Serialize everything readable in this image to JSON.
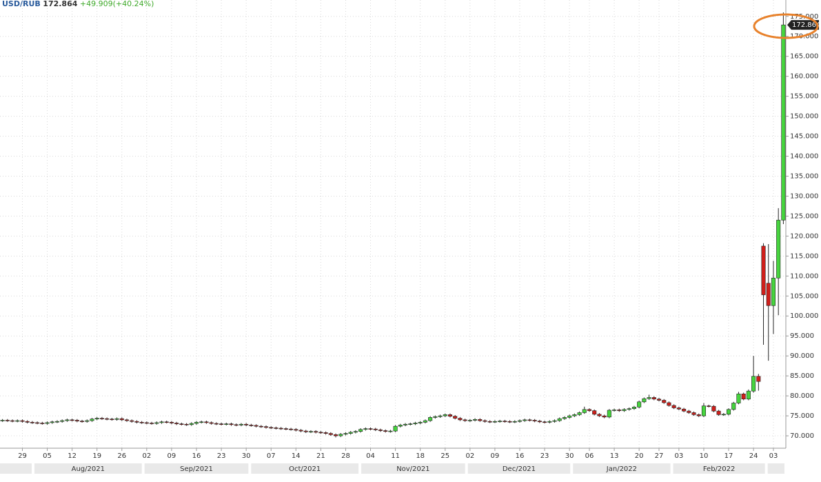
{
  "chart_data": {
    "type": "candlestick",
    "title": "USD/RUB",
    "change": "+49.909(+40.24%)",
    "categories": [
      null,
      null,
      null,
      null,
      "29",
      null,
      null,
      null,
      null,
      "05",
      null,
      null,
      null,
      null,
      "12",
      null,
      null,
      null,
      null,
      "19",
      null,
      null,
      null,
      null,
      "26",
      null,
      null,
      null,
      null,
      "02",
      null,
      null,
      null,
      null,
      "09",
      null,
      null,
      null,
      null,
      "16",
      null,
      null,
      null,
      null,
      "23",
      null,
      null,
      null,
      null,
      "30",
      null,
      null,
      null,
      null,
      "07",
      null,
      null,
      null,
      null,
      "14",
      null,
      null,
      null,
      null,
      "21",
      null,
      null,
      null,
      null,
      "28",
      null,
      null,
      null,
      null,
      "04",
      null,
      null,
      null,
      null,
      "11",
      null,
      null,
      null,
      null,
      "18",
      null,
      null,
      null,
      null,
      "25",
      null,
      null,
      null,
      null,
      "02",
      null,
      null,
      null,
      null,
      "09",
      null,
      null,
      null,
      null,
      "16",
      null,
      null,
      null,
      null,
      "23",
      null,
      null,
      null,
      null,
      "30",
      null,
      null,
      null,
      "06",
      null,
      null,
      null,
      null,
      "13",
      null,
      null,
      null,
      null,
      "20",
      null,
      null,
      null,
      "27",
      null,
      null,
      null,
      "03",
      null,
      null,
      null,
      null,
      "10",
      null,
      null,
      null,
      null,
      "17",
      null,
      null,
      null,
      null,
      "24",
      null,
      null,
      null,
      "03",
      null,
      null
    ],
    "months": [
      "Aug/2021",
      "Sep/2021",
      "Oct/2021",
      "Nov/2021",
      "Dec/2021",
      "Jan/2022",
      "Feb/2022"
    ],
    "open": [
      73.8,
      73.9,
      73.8,
      73.7,
      73.8,
      73.6,
      73.4,
      73.3,
      73.2,
      73.1,
      73.3,
      73.5,
      73.6,
      73.8,
      74.0,
      73.9,
      73.7,
      73.6,
      73.8,
      74.2,
      74.4,
      74.3,
      74.2,
      74.1,
      74.3,
      74.0,
      73.8,
      73.6,
      73.4,
      73.3,
      73.2,
      73.1,
      73.3,
      73.5,
      73.4,
      73.2,
      73.0,
      72.9,
      72.8,
      73.1,
      73.4,
      73.5,
      73.3,
      73.1,
      73.0,
      72.9,
      73.0,
      72.8,
      72.7,
      72.9,
      72.7,
      72.6,
      72.4,
      72.3,
      72.1,
      72.0,
      71.9,
      71.8,
      71.7,
      71.6,
      71.4,
      71.2,
      71.0,
      71.1,
      70.9,
      70.8,
      70.6,
      70.3,
      70.0,
      70.4,
      70.6,
      70.9,
      71.1,
      71.6,
      71.8,
      71.7,
      71.5,
      71.3,
      71.1,
      71.2,
      72.4,
      72.7,
      72.9,
      73.0,
      73.2,
      73.4,
      73.8,
      74.6,
      74.8,
      75.0,
      75.3,
      74.9,
      74.4,
      74.0,
      73.8,
      73.9,
      74.1,
      73.8,
      73.6,
      73.5,
      73.6,
      73.7,
      73.6,
      73.5,
      73.6,
      73.8,
      74.0,
      73.9,
      73.7,
      73.5,
      73.4,
      73.6,
      73.8,
      74.3,
      74.6,
      75.0,
      75.3,
      75.8,
      76.6,
      76.3,
      75.4,
      75.0,
      74.7,
      76.4,
      76.5,
      76.3,
      76.6,
      76.8,
      77.2,
      78.5,
      79.3,
      79.6,
      79.2,
      78.9,
      78.3,
      77.6,
      77.0,
      76.7,
      76.2,
      75.8,
      75.3,
      75.0,
      77.5,
      77.4,
      76.2,
      75.3,
      75.4,
      76.6,
      78.2,
      80.5,
      79.2,
      81.2,
      84.9,
      117.5,
      108.2,
      102.6,
      109.5,
      124.0
    ],
    "high": [
      74.2,
      74.2,
      74.1,
      74.1,
      74.1,
      73.9,
      73.7,
      73.6,
      73.5,
      73.6,
      73.8,
      73.9,
      74.1,
      74.3,
      74.3,
      74.2,
      74.0,
      74.1,
      74.5,
      74.7,
      74.7,
      74.6,
      74.5,
      74.6,
      74.6,
      74.3,
      74.1,
      73.9,
      73.7,
      73.6,
      73.5,
      73.6,
      73.8,
      73.8,
      73.7,
      73.5,
      73.3,
      73.2,
      73.4,
      73.7,
      73.8,
      73.8,
      73.6,
      73.4,
      73.3,
      73.3,
      73.3,
      73.1,
      73.2,
      73.2,
      73.0,
      72.9,
      72.7,
      72.6,
      72.4,
      72.3,
      72.2,
      72.1,
      72.0,
      71.9,
      71.7,
      71.5,
      71.4,
      71.4,
      71.2,
      71.1,
      70.9,
      70.6,
      70.7,
      70.9,
      71.2,
      71.4,
      71.9,
      72.1,
      72.1,
      72.0,
      71.8,
      71.6,
      71.5,
      72.7,
      73.0,
      73.2,
      73.3,
      73.5,
      73.7,
      74.1,
      74.9,
      75.1,
      75.3,
      75.6,
      75.6,
      75.2,
      74.7,
      74.3,
      74.2,
      74.4,
      74.4,
      74.1,
      73.9,
      73.9,
      74.0,
      74.0,
      73.9,
      73.9,
      74.1,
      74.3,
      74.3,
      74.2,
      74.0,
      73.8,
      73.9,
      74.1,
      74.6,
      74.9,
      75.3,
      75.6,
      76.1,
      77.3,
      76.9,
      76.6,
      75.7,
      75.3,
      76.7,
      76.8,
      76.8,
      76.9,
      77.1,
      77.5,
      78.8,
      79.6,
      80.3,
      79.9,
      79.5,
      79.2,
      78.6,
      77.9,
      77.3,
      77.0,
      76.5,
      76.1,
      75.6,
      78.2,
      77.8,
      77.7,
      76.5,
      75.7,
      76.9,
      78.5,
      81.0,
      80.8,
      81.6,
      90.0,
      85.5,
      118.2,
      118.0,
      113.8,
      127.0,
      176.0
    ],
    "low": [
      73.5,
      73.5,
      73.4,
      73.4,
      73.3,
      73.1,
      73.0,
      72.9,
      72.8,
      72.8,
      73.0,
      73.2,
      73.3,
      73.5,
      73.6,
      73.4,
      73.3,
      73.3,
      73.5,
      73.9,
      74.0,
      73.9,
      73.8,
      73.8,
      73.7,
      73.5,
      73.3,
      73.1,
      73.0,
      72.9,
      72.8,
      72.8,
      73.0,
      73.1,
      72.9,
      72.7,
      72.6,
      72.5,
      72.5,
      72.8,
      73.1,
      73.0,
      72.8,
      72.7,
      72.6,
      72.6,
      72.5,
      72.4,
      72.4,
      72.4,
      72.3,
      72.1,
      72.0,
      71.8,
      71.7,
      71.6,
      71.5,
      71.4,
      71.3,
      71.1,
      70.9,
      70.7,
      70.7,
      70.6,
      70.5,
      70.3,
      70.0,
      69.6,
      69.7,
      70.1,
      70.3,
      70.6,
      70.8,
      71.3,
      71.4,
      71.2,
      71.0,
      70.8,
      70.8,
      70.9,
      72.1,
      72.4,
      72.6,
      72.7,
      72.9,
      73.1,
      73.5,
      74.3,
      74.5,
      74.7,
      74.6,
      74.1,
      73.7,
      73.5,
      73.5,
      73.6,
      73.5,
      73.3,
      73.2,
      73.2,
      73.3,
      73.3,
      73.2,
      73.2,
      73.3,
      73.5,
      73.6,
      73.4,
      73.2,
      73.1,
      73.1,
      73.3,
      73.5,
      74.0,
      74.3,
      74.7,
      75.0,
      75.5,
      76.0,
      75.1,
      74.7,
      74.4,
      74.4,
      76.1,
      76.0,
      76.0,
      76.3,
      76.5,
      76.9,
      78.2,
      79.0,
      78.9,
      78.6,
      78.0,
      77.3,
      76.7,
      76.4,
      75.9,
      75.5,
      75.0,
      74.7,
      74.7,
      77.1,
      75.9,
      75.0,
      75.0,
      75.1,
      76.3,
      77.9,
      78.9,
      78.9,
      80.8,
      81.3,
      92.8,
      88.8,
      95.5,
      100.2,
      123.0
    ],
    "close": [
      73.9,
      73.8,
      73.7,
      73.8,
      73.6,
      73.4,
      73.3,
      73.2,
      73.1,
      73.3,
      73.5,
      73.6,
      73.8,
      74.0,
      73.9,
      73.7,
      73.6,
      73.8,
      74.2,
      74.4,
      74.3,
      74.2,
      74.1,
      74.3,
      74.0,
      73.8,
      73.6,
      73.4,
      73.3,
      73.2,
      73.1,
      73.3,
      73.5,
      73.4,
      73.2,
      73.0,
      72.9,
      72.8,
      73.1,
      73.4,
      73.5,
      73.3,
      73.1,
      73.0,
      72.9,
      73.0,
      72.8,
      72.7,
      72.9,
      72.7,
      72.6,
      72.4,
      72.3,
      72.1,
      72.0,
      71.9,
      71.8,
      71.7,
      71.6,
      71.4,
      71.2,
      71.0,
      71.1,
      70.9,
      70.8,
      70.6,
      70.3,
      70.0,
      70.4,
      70.6,
      70.9,
      71.1,
      71.6,
      71.8,
      71.7,
      71.5,
      71.3,
      71.1,
      71.2,
      72.4,
      72.7,
      72.9,
      73.0,
      73.2,
      73.4,
      73.8,
      74.6,
      74.8,
      75.0,
      75.3,
      74.9,
      74.4,
      74.0,
      73.8,
      73.9,
      74.1,
      73.8,
      73.6,
      73.5,
      73.6,
      73.7,
      73.6,
      73.5,
      73.6,
      73.8,
      74.0,
      73.9,
      73.7,
      73.5,
      73.4,
      73.6,
      73.8,
      74.3,
      74.6,
      75.0,
      75.3,
      75.8,
      76.6,
      76.3,
      75.4,
      75.0,
      74.7,
      76.4,
      76.5,
      76.3,
      76.6,
      76.8,
      77.2,
      78.5,
      79.3,
      79.6,
      79.2,
      78.9,
      78.3,
      77.6,
      77.0,
      76.7,
      76.2,
      75.8,
      75.3,
      75.0,
      77.5,
      77.4,
      76.2,
      75.3,
      75.4,
      76.6,
      78.2,
      80.5,
      79.2,
      81.2,
      84.9,
      83.6,
      105.3,
      102.6,
      109.5,
      124.0,
      172.864
    ],
    "up_color": "#46d43e",
    "down_color": "#cf1f1b",
    "ylim": [
      66.9,
      179.1
    ],
    "yticks": [
      {
        "value": 70,
        "label": "70.000"
      },
      {
        "value": 75,
        "label": "75.000"
      },
      {
        "value": 80,
        "label": "80.000"
      },
      {
        "value": 85,
        "label": "85.000"
      },
      {
        "value": 90,
        "label": "90.000"
      },
      {
        "value": 95,
        "label": "95.000"
      },
      {
        "value": 100,
        "label": "100.000"
      },
      {
        "value": 105,
        "label": "105.000"
      },
      {
        "value": 110,
        "label": "110.000"
      },
      {
        "value": 115,
        "label": "115.000"
      },
      {
        "value": 120,
        "label": "120.000"
      },
      {
        "value": 125,
        "label": "125.000"
      },
      {
        "value": 130,
        "label": "130.000"
      },
      {
        "value": 135,
        "label": "135.000"
      },
      {
        "value": 140,
        "label": "140.000"
      },
      {
        "value": 145,
        "label": "145.000"
      },
      {
        "value": 150,
        "label": "150.000"
      },
      {
        "value": 155,
        "label": "155.000"
      },
      {
        "value": 160,
        "label": "160.000"
      },
      {
        "value": 165,
        "label": "165.000"
      },
      {
        "value": 170,
        "label": "170.000"
      },
      {
        "value": 175,
        "label": "175.000"
      }
    ],
    "grid": true
  }
}
